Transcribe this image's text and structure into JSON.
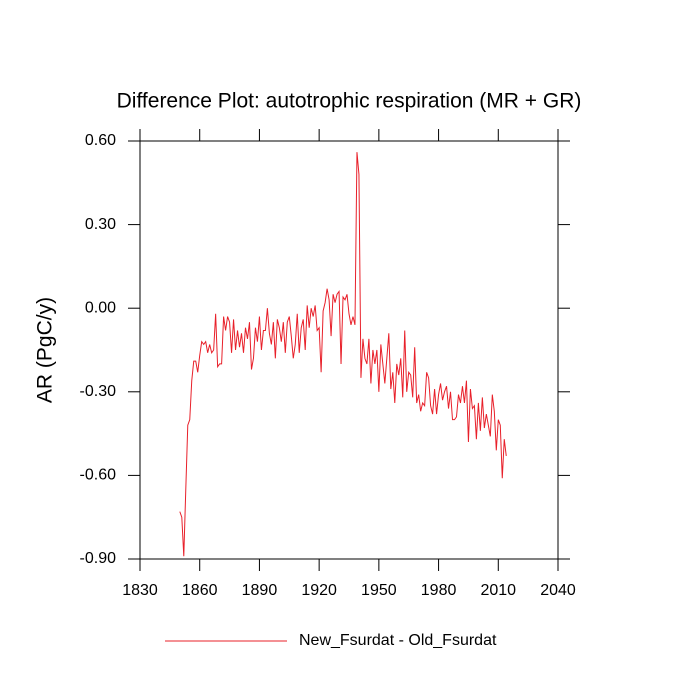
{
  "chart_data": {
    "type": "line",
    "title": "Difference Plot: autotrophic respiration (MR + GR)",
    "y_label": "AR  (PgC/y)",
    "x": [
      1850,
      1851,
      1852,
      1853,
      1854,
      1855,
      1856,
      1857,
      1858,
      1859,
      1860,
      1861,
      1862,
      1863,
      1864,
      1865,
      1866,
      1867,
      1868,
      1869,
      1870,
      1871,
      1872,
      1873,
      1874,
      1875,
      1876,
      1877,
      1878,
      1879,
      1880,
      1881,
      1882,
      1883,
      1884,
      1885,
      1886,
      1887,
      1888,
      1889,
      1890,
      1891,
      1892,
      1893,
      1894,
      1895,
      1896,
      1897,
      1898,
      1899,
      1900,
      1901,
      1902,
      1903,
      1904,
      1905,
      1906,
      1907,
      1908,
      1909,
      1910,
      1911,
      1912,
      1913,
      1914,
      1915,
      1916,
      1917,
      1918,
      1919,
      1920,
      1921,
      1922,
      1923,
      1924,
      1925,
      1926,
      1927,
      1928,
      1929,
      1930,
      1931,
      1932,
      1933,
      1934,
      1935,
      1936,
      1937,
      1938,
      1939,
      1940,
      1941,
      1942,
      1943,
      1944,
      1945,
      1946,
      1947,
      1948,
      1949,
      1950,
      1951,
      1952,
      1953,
      1954,
      1955,
      1956,
      1957,
      1958,
      1959,
      1960,
      1961,
      1962,
      1963,
      1964,
      1965,
      1966,
      1967,
      1968,
      1969,
      1970,
      1971,
      1972,
      1973,
      1974,
      1975,
      1976,
      1977,
      1978,
      1979,
      1980,
      1981,
      1982,
      1983,
      1984,
      1985,
      1986,
      1987,
      1988,
      1989,
      1990,
      1991,
      1992,
      1993,
      1994,
      1995,
      1996,
      1997,
      1998,
      1999,
      2000,
      2001,
      2002,
      2003,
      2004,
      2005,
      2006,
      2007,
      2008,
      2009,
      2010,
      2011,
      2012,
      2013,
      2014
    ],
    "series": [
      {
        "name": "New_Fsurdat - Old_Fsurdat",
        "color": "#e8202a",
        "values": [
          -0.73,
          -0.75,
          -0.89,
          -0.65,
          -0.42,
          -0.4,
          -0.26,
          -0.19,
          -0.19,
          -0.23,
          -0.17,
          -0.12,
          -0.13,
          -0.12,
          -0.16,
          -0.13,
          -0.16,
          -0.15,
          -0.02,
          -0.21,
          -0.2,
          -0.2,
          -0.03,
          -0.08,
          -0.03,
          -0.05,
          -0.16,
          -0.04,
          -0.15,
          -0.08,
          -0.14,
          -0.09,
          -0.16,
          -0.07,
          -0.11,
          -0.05,
          -0.22,
          -0.18,
          -0.07,
          -0.12,
          -0.03,
          -0.15,
          -0.08,
          -0.08,
          0.0,
          -0.09,
          -0.13,
          -0.05,
          -0.18,
          -0.04,
          -0.07,
          -0.12,
          -0.05,
          -0.16,
          -0.05,
          -0.03,
          -0.1,
          -0.18,
          -0.13,
          -0.02,
          -0.16,
          -0.07,
          -0.04,
          -0.15,
          0.01,
          -0.07,
          0.0,
          -0.03,
          0.01,
          -0.08,
          -0.07,
          -0.23,
          -0.01,
          0.02,
          0.07,
          0.03,
          -0.1,
          0.05,
          0.02,
          0.05,
          0.06,
          -0.2,
          0.04,
          0.03,
          0.05,
          -0.02,
          -0.06,
          -0.03,
          -0.06,
          0.56,
          0.48,
          -0.25,
          -0.11,
          -0.18,
          -0.2,
          -0.11,
          -0.27,
          -0.15,
          -0.2,
          -0.15,
          -0.3,
          -0.13,
          -0.2,
          -0.27,
          -0.18,
          -0.09,
          -0.29,
          -0.23,
          -0.34,
          -0.2,
          -0.24,
          -0.18,
          -0.32,
          -0.08,
          -0.3,
          -0.23,
          -0.24,
          -0.32,
          -0.14,
          -0.34,
          -0.31,
          -0.37,
          -0.34,
          -0.35,
          -0.23,
          -0.25,
          -0.35,
          -0.38,
          -0.29,
          -0.38,
          -0.31,
          -0.27,
          -0.33,
          -0.3,
          -0.28,
          -0.36,
          -0.3,
          -0.4,
          -0.4,
          -0.39,
          -0.31,
          -0.34,
          -0.28,
          -0.34,
          -0.26,
          -0.48,
          -0.29,
          -0.36,
          -0.35,
          -0.47,
          -0.34,
          -0.44,
          -0.32,
          -0.43,
          -0.38,
          -0.42,
          -0.46,
          -0.31,
          -0.37,
          -0.51,
          -0.4,
          -0.42,
          -0.61,
          -0.47,
          -0.53
        ]
      }
    ],
    "xlim": [
      1830,
      2040
    ],
    "xticks": [
      1830,
      1860,
      1890,
      1920,
      1950,
      1980,
      2010,
      2040
    ],
    "ylim": [
      -0.9,
      0.6
    ],
    "yticks": [
      {
        "value": -0.9,
        "label": "-0.90"
      },
      {
        "value": -0.6,
        "label": "-0.60"
      },
      {
        "value": -0.3,
        "label": "-0.30"
      },
      {
        "value": 0,
        "label": "0.00"
      },
      {
        "value": 0.3,
        "label": "0.30"
      },
      {
        "value": 0.6,
        "label": "0.60"
      }
    ],
    "legend": "bottom"
  }
}
